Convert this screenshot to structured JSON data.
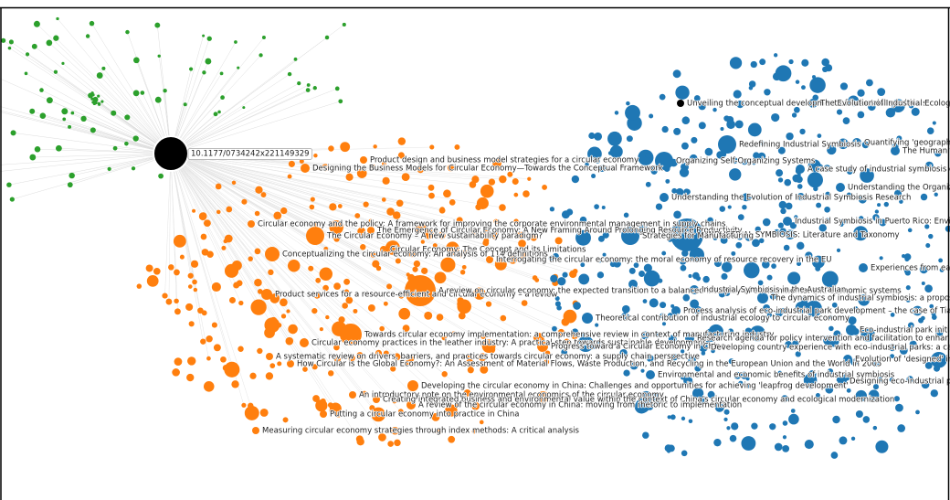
{
  "selected_node": {
    "label": "10.1177/0734242x221149329"
  },
  "nodes": [
    {
      "label": "Product design and business model strategies for a circular economy"
    },
    {
      "label": "Designing the Business Models for Circular Economy—Towards the Conceptual Framework"
    },
    {
      "label": "Circular economy and the policy: A framework for improving the corporate environmental management in supply chains"
    },
    {
      "label": "The Emergence of Circular Economy: A New Framing Around Prolonging Resource Productivity"
    },
    {
      "label": "The Circular Economy – A new sustainability paradigm?"
    },
    {
      "label": "Circular Economy: The Concept and its Limitations"
    },
    {
      "label": "Conceptualizing the circular economy: An analysis of 114 definitions"
    },
    {
      "label": "Interrogating the circular economy: the moral economy of resource recovery in the EU"
    },
    {
      "label": "Product services for a resource-efficient and circular economy – a review"
    },
    {
      "label": "A review on circular economy: the expected transition to a balanced interplay of environmental and economic systems"
    },
    {
      "label": "Towards circular economy implementation: a comprehensive review in context of manufacturing industry"
    },
    {
      "label": "Circular economy practices in the leather industry: A practical step towards sustainable development"
    },
    {
      "label": "A systematic review on drivers, barriers, and practices towards circular economy: a supply chain perspective"
    },
    {
      "label": "How Circular is the Global Economy?: An Assessment of Material Flows, Waste Production, and Recycling in the European Union and the World in 2005"
    },
    {
      "label": "Progress toward a Circular Economy in China"
    },
    {
      "label": "Developing the circular economy in China: Challenges and opportunities for achieving 'leapfrog development'"
    },
    {
      "label": "An introductory note on the environmental economics of the circular economy"
    },
    {
      "label": "Creating integrated business and environmental value within the context of China's circular economy and ecological modernization"
    },
    {
      "label": "A review of the circular economy in China: moving from rhetoric to implementation"
    },
    {
      "label": "Putting a circular economy into practice in China"
    },
    {
      "label": "Measuring circular economy strategies through index methods: A critical analysis"
    },
    {
      "label": "Unveiling the conceptual development of industrial symbiosis"
    },
    {
      "label": "The Evolution of Industrial Ecology"
    },
    {
      "label": "Redefining Industrial Symbiosis"
    },
    {
      "label": "Quantifying 'geographic proximity'"
    },
    {
      "label": "Organizing Self-Organizing Systems"
    },
    {
      "label": "The Humanities"
    },
    {
      "label": "A case study of industrial symbiosis development"
    },
    {
      "label": "Understanding the Organization"
    },
    {
      "label": "Understanding the Evolution of Industrial Symbiosis Research"
    },
    {
      "label": "Industrial Symbiosis in Puerto Rico: Environmentally"
    },
    {
      "label": "INDUSTRIAL SYMBIOSIS: Literature and Taxonomy"
    },
    {
      "label": "Strategies for Manufacturing"
    },
    {
      "label": "Experiences from early"
    },
    {
      "label": "The dynamics of industrial symbiosis: a proposal for a conceptual framework"
    },
    {
      "label": "Industrial Symbiosis in the Australian"
    },
    {
      "label": "Process analysis of eco-industrial park development – the case of Tianjin, China"
    },
    {
      "label": "Theoretical contribution of industrial ecology to circular economy"
    },
    {
      "label": "Eco-industrial park initiatives"
    },
    {
      "label": "Research agenda for policy intervention and facilitation to enhance industrial symbiosis"
    },
    {
      "label": "Developing country experience with eco-industrial parks: a case study"
    },
    {
      "label": "Evolution of 'designed' industrial symbiosis"
    },
    {
      "label": "Environmental and economic benefits of industrial symbiosis"
    },
    {
      "label": "Designing eco-industrial parks"
    }
  ]
}
